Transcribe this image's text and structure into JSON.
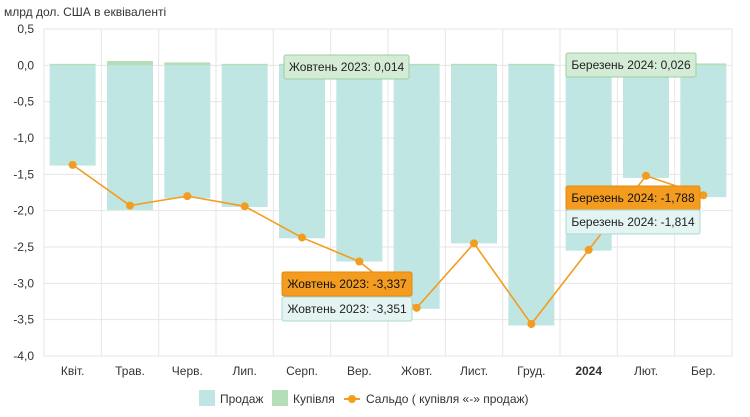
{
  "chart_data": {
    "type": "bar+line",
    "unit_label": "млрд дол. США в еквіваленті",
    "categories": [
      "Квіт.",
      "Трав.",
      "Черв.",
      "Лип.",
      "Серп.",
      "Вер.",
      "Жовт.",
      "Лист.",
      "Груд.",
      "2024",
      "Лют.",
      "Бер."
    ],
    "bold_categories": [
      "2024"
    ],
    "ylim": [
      -4.0,
      0.5
    ],
    "yticks": [
      "0,5",
      "0,0",
      "-0,5",
      "-1,0",
      "-1,5",
      "-2,0",
      "-2,5",
      "-3,0",
      "-3,5",
      "-4,0"
    ],
    "ytick_values": [
      0.5,
      0.0,
      -0.5,
      -1.0,
      -1.5,
      -2.0,
      -2.5,
      -3.0,
      -3.5,
      -4.0
    ],
    "series": [
      {
        "name": "Продаж",
        "kind": "bar",
        "color": "#bfe6e3",
        "values": [
          -1.38,
          -1.99,
          -1.83,
          -1.95,
          -2.38,
          -2.7,
          -3.351,
          -2.45,
          -3.58,
          -2.55,
          -1.55,
          -1.814
        ]
      },
      {
        "name": "Купівля",
        "kind": "bar",
        "color": "#b5ddb7",
        "values": [
          0.005,
          0.06,
          0.04,
          0.01,
          0.005,
          0.005,
          0.014,
          0.005,
          0.005,
          0.005,
          0.005,
          0.026
        ]
      },
      {
        "name": "Сальдо ( купівля «-» продаж)",
        "kind": "line",
        "color": "#f39c1f",
        "values": [
          -1.37,
          -1.93,
          -1.8,
          -1.94,
          -2.37,
          -2.7,
          -3.337,
          -2.45,
          -3.56,
          -2.54,
          -1.52,
          -1.788
        ]
      }
    ],
    "tooltips": [
      {
        "text": "Жовтень 2023: 0,014",
        "style": "green"
      },
      {
        "text": "Березень 2024: 0,026",
        "style": "green"
      },
      {
        "text": "Березень 2024: -1,788",
        "style": "orange"
      },
      {
        "text": "Березень 2024: -1,814",
        "style": "teal"
      },
      {
        "text": "Жовтень 2023: -3,337",
        "style": "orange"
      },
      {
        "text": "Жовтень 2023: -3,351",
        "style": "teal"
      }
    ],
    "legend_position": "bottom-center",
    "grid": true
  },
  "colors": {
    "grid": "#e6e6e6",
    "tip_green_fill": "#d4ebd6",
    "tip_green_stroke": "#9ccf9f",
    "tip_orange_fill": "#f39c1f",
    "tip_orange_stroke": "#e08a10",
    "tip_teal_fill": "#e4f4f3",
    "tip_teal_stroke": "#a9d8d4"
  }
}
